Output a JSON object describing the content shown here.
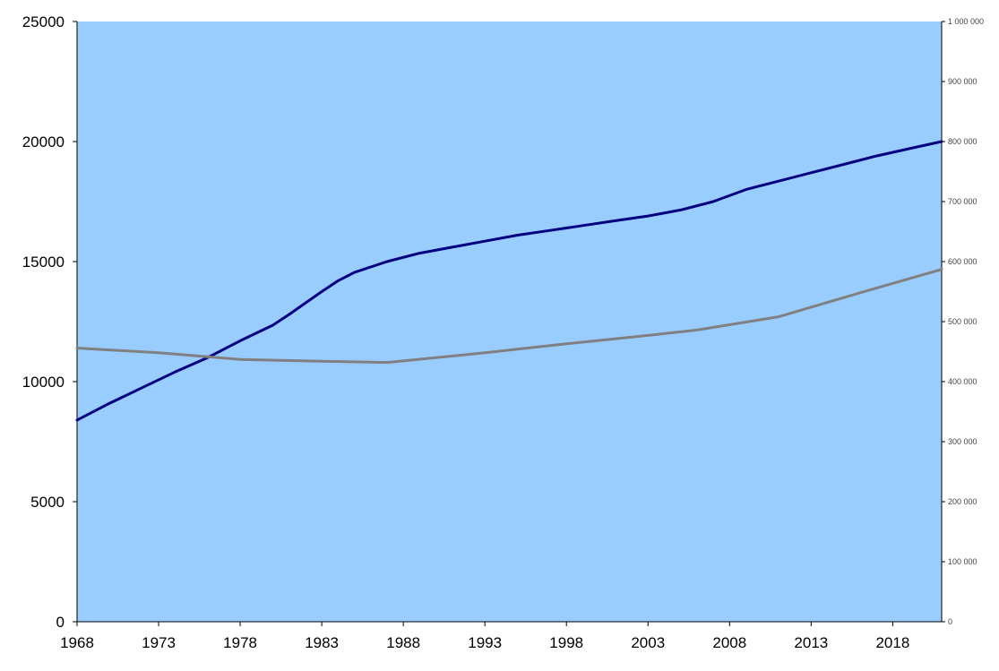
{
  "chart_data": {
    "type": "line",
    "title": "",
    "xlabel": "",
    "ylabel": "",
    "y2label": "",
    "legend": "none",
    "grid": false,
    "xlim": [
      1968,
      2021
    ],
    "ylim": [
      0,
      25000
    ],
    "y2lim": [
      0,
      1000000
    ],
    "x_ticks": [
      1968,
      1973,
      1978,
      1983,
      1988,
      1993,
      1998,
      2003,
      2008,
      2013,
      2018
    ],
    "x_tick_labels": [
      "1968",
      "1973",
      "1978",
      "1983",
      "1988",
      "1993",
      "1998",
      "2003",
      "2008",
      "2013",
      "2018"
    ],
    "y_ticks": [
      0,
      5000,
      10000,
      15000,
      20000,
      25000
    ],
    "y_tick_labels": [
      "0",
      "5000",
      "10000",
      "15000",
      "20000",
      "25000"
    ],
    "y2_ticks": [
      0,
      100000,
      200000,
      300000,
      400000,
      500000,
      600000,
      700000,
      800000,
      900000,
      1000000
    ],
    "y2_tick_labels": [
      "0",
      "100 000",
      "200 000",
      "300 000",
      "400 000",
      "500 000",
      "600 000",
      "700 000",
      "800 000",
      "900 000",
      "1 000 000"
    ],
    "plot_background": "#99ccff",
    "series": [
      {
        "axis": "left",
        "color": "#000080",
        "x": [
          1968,
          1970,
          1972,
          1974,
          1976,
          1978,
          1980,
          1981,
          1983,
          1984,
          1985,
          1987,
          1989,
          1991,
          1993,
          1995,
          1997,
          1999,
          2001,
          2003,
          2005,
          2007,
          2009,
          2011,
          2013,
          2015,
          2017,
          2019,
          2021
        ],
        "values": [
          8400,
          9100,
          9750,
          10400,
          11000,
          11700,
          12350,
          12800,
          13750,
          14200,
          14550,
          15000,
          15350,
          15600,
          15850,
          16100,
          16300,
          16500,
          16700,
          16900,
          17150,
          17500,
          18000,
          18350,
          18700,
          19050,
          19400,
          19700,
          20000
        ]
      },
      {
        "axis": "right",
        "color": "#808080",
        "x": [
          1968,
          1973,
          1978,
          1983,
          1987,
          1993,
          1998,
          2003,
          2006,
          2011,
          2016,
          2021
        ],
        "values": [
          456000,
          448000,
          437000,
          434000,
          432000,
          448000,
          463000,
          477000,
          486000,
          508000,
          548000,
          587000
        ]
      }
    ]
  }
}
